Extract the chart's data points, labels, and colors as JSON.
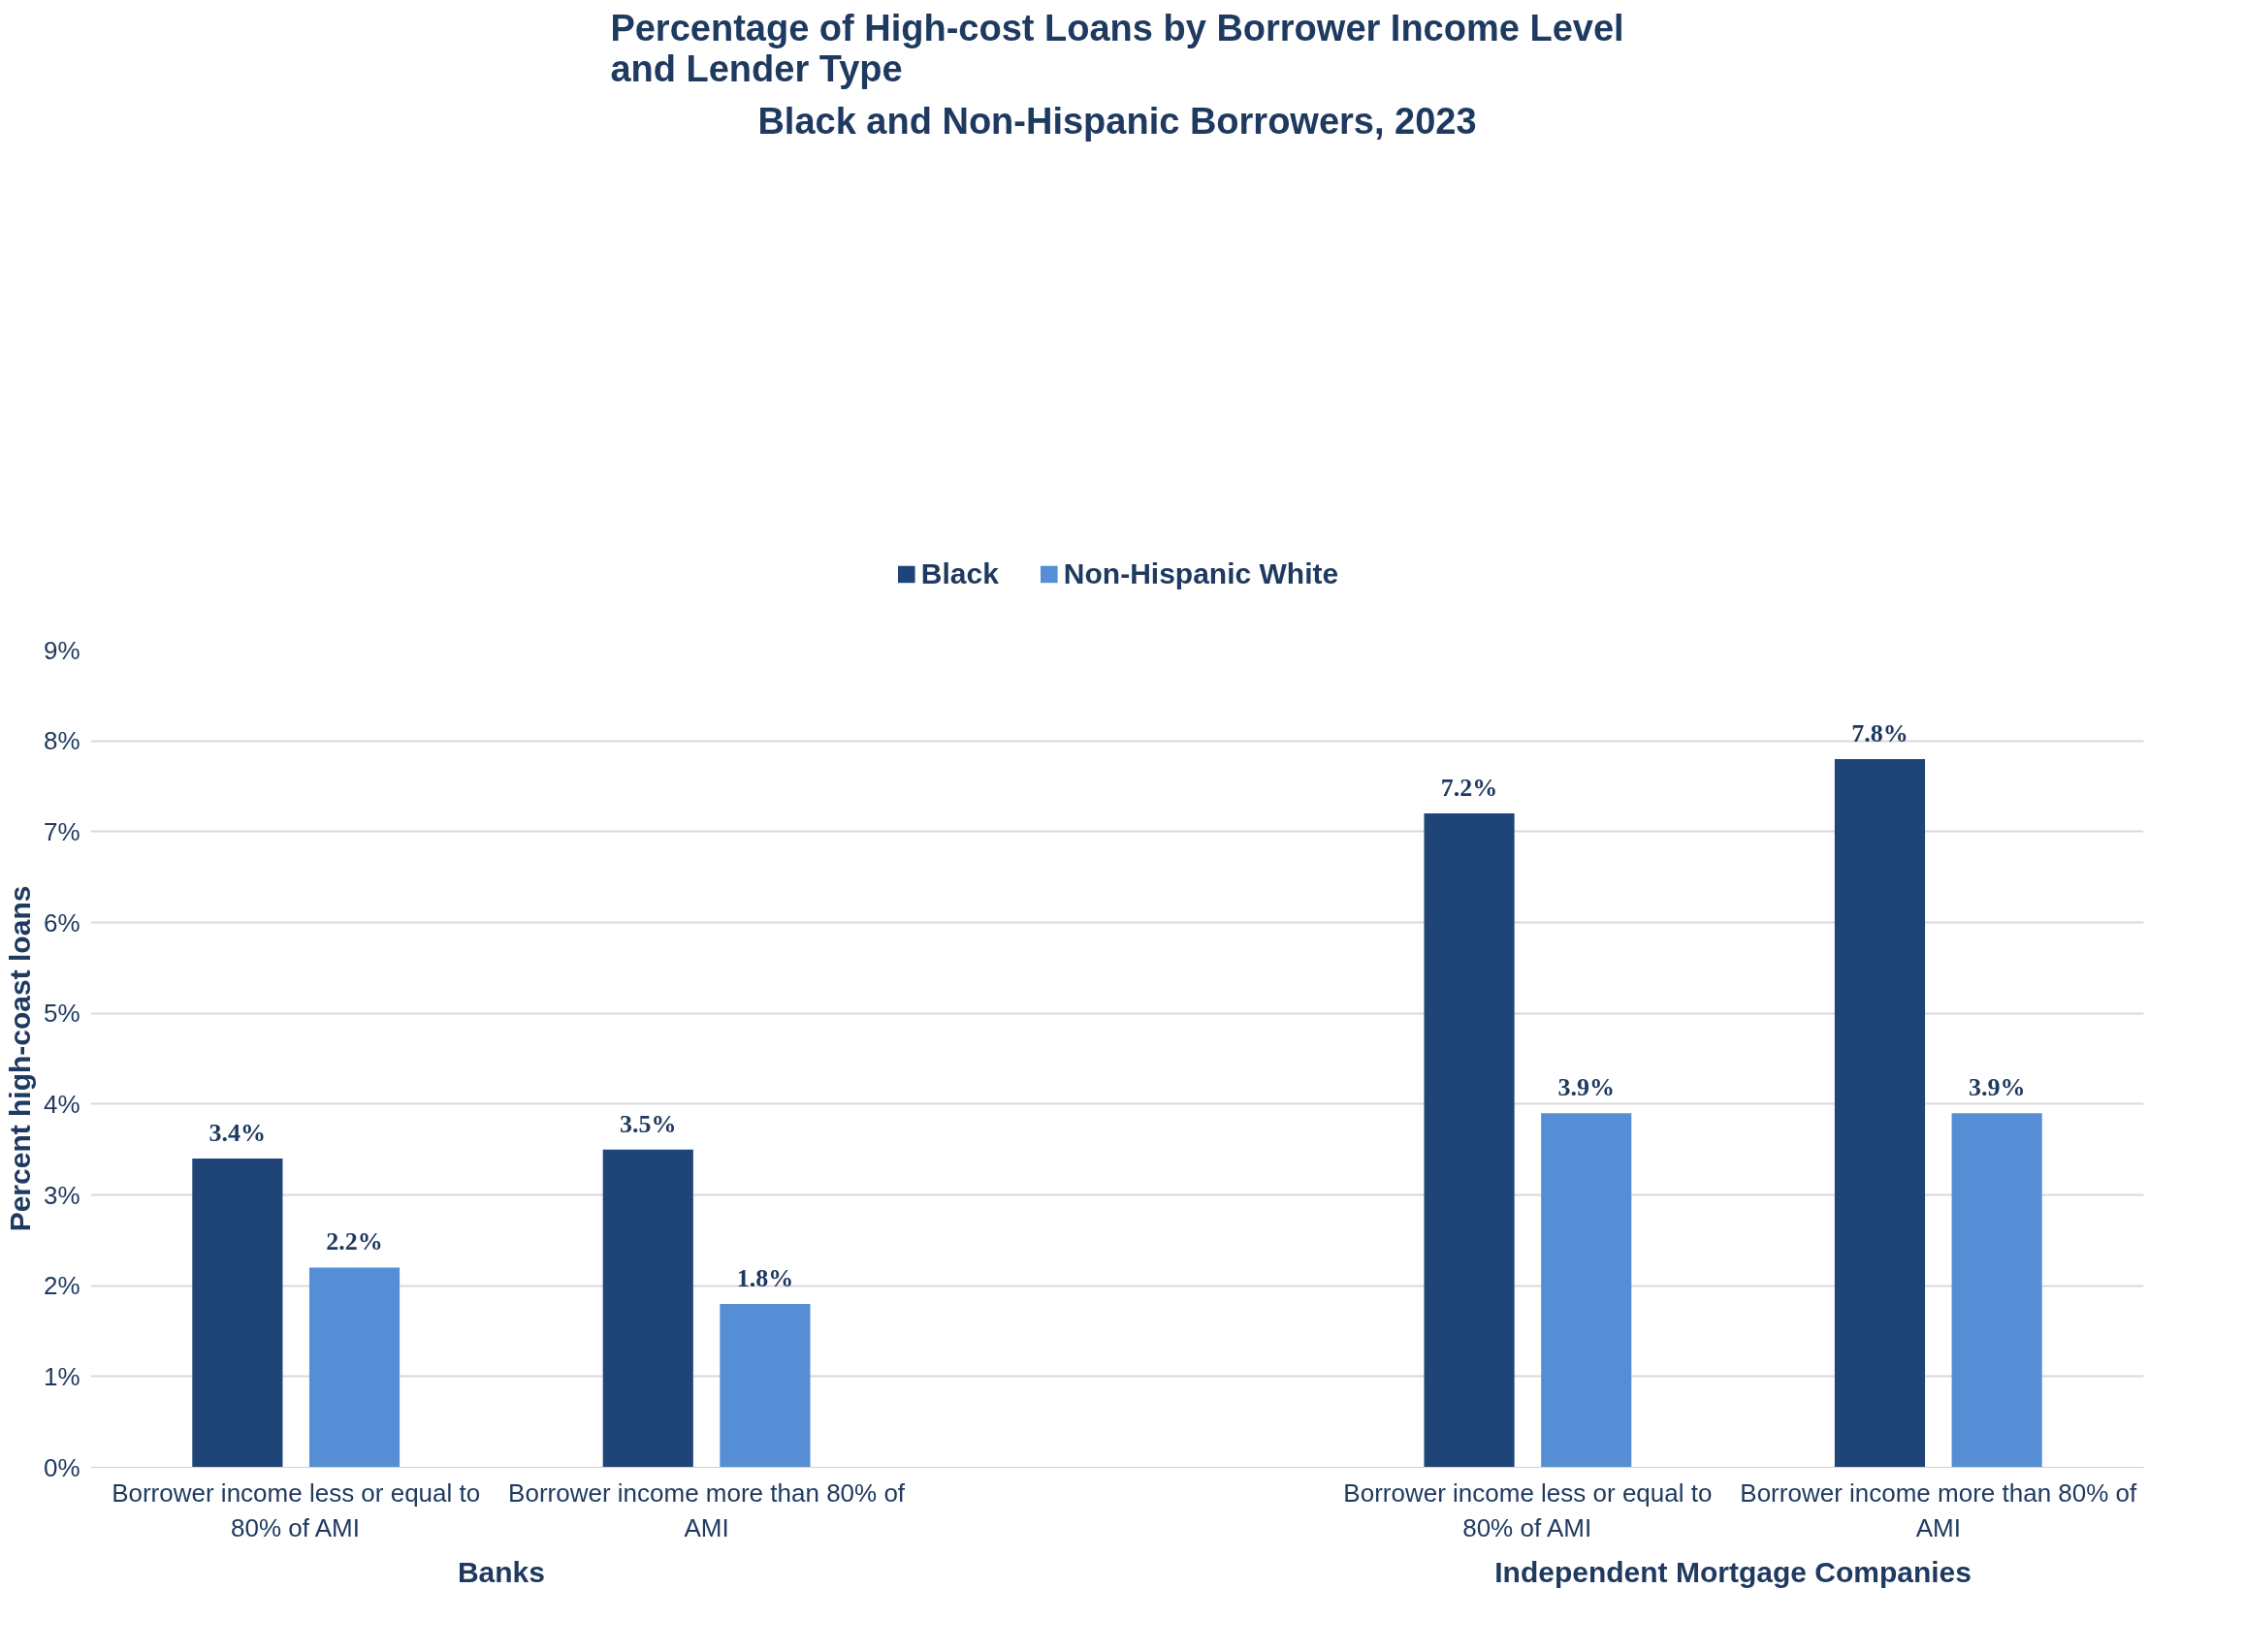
{
  "chart_data": {
    "type": "bar",
    "title": "Percentage of High-cost Loans by Borrower Income Level\nand Lender Type",
    "subtitle": "Black and Non-Hispanic Borrowers, 2023",
    "ylabel": "Percent high-coast loans",
    "categories": [
      "Borrower income less or equal to 80% of AMI",
      "Borrower income more than 80% of AMI",
      null,
      "Borrower income less or equal to 80% of AMI",
      "Borrower income more than 80% of AMI"
    ],
    "series": [
      {
        "name": "Black",
        "color": "#1f4578",
        "values": [
          3.4,
          3.5,
          null,
          7.2,
          7.8
        ],
        "value_labels": [
          "3.4%",
          "3.5%",
          null,
          "7.2%",
          "7.8%"
        ]
      },
      {
        "name": "Non-Hispanic White",
        "color": "#558ed5",
        "values": [
          2.2,
          1.8,
          null,
          3.9,
          3.9
        ],
        "value_labels": [
          "2.2%",
          "1.8%",
          null,
          "3.9%",
          "3.9%"
        ]
      }
    ],
    "annotations": [
      "Banks",
      "Independent Mortgage Companies"
    ],
    "ylim": [
      0,
      9
    ],
    "yticks": [
      {
        "value": 0,
        "label": "0%"
      },
      {
        "value": 1,
        "label": "1%"
      },
      {
        "value": 2,
        "label": "2%"
      },
      {
        "value": 3,
        "label": "3%"
      },
      {
        "value": 4,
        "label": "4%"
      },
      {
        "value": 5,
        "label": "5%"
      },
      {
        "value": 6,
        "label": "6%"
      },
      {
        "value": 7,
        "label": "7%"
      },
      {
        "value": 8,
        "label": "8%"
      },
      {
        "value": 9,
        "label": "9%"
      }
    ],
    "grid": "y",
    "legend": "top"
  }
}
